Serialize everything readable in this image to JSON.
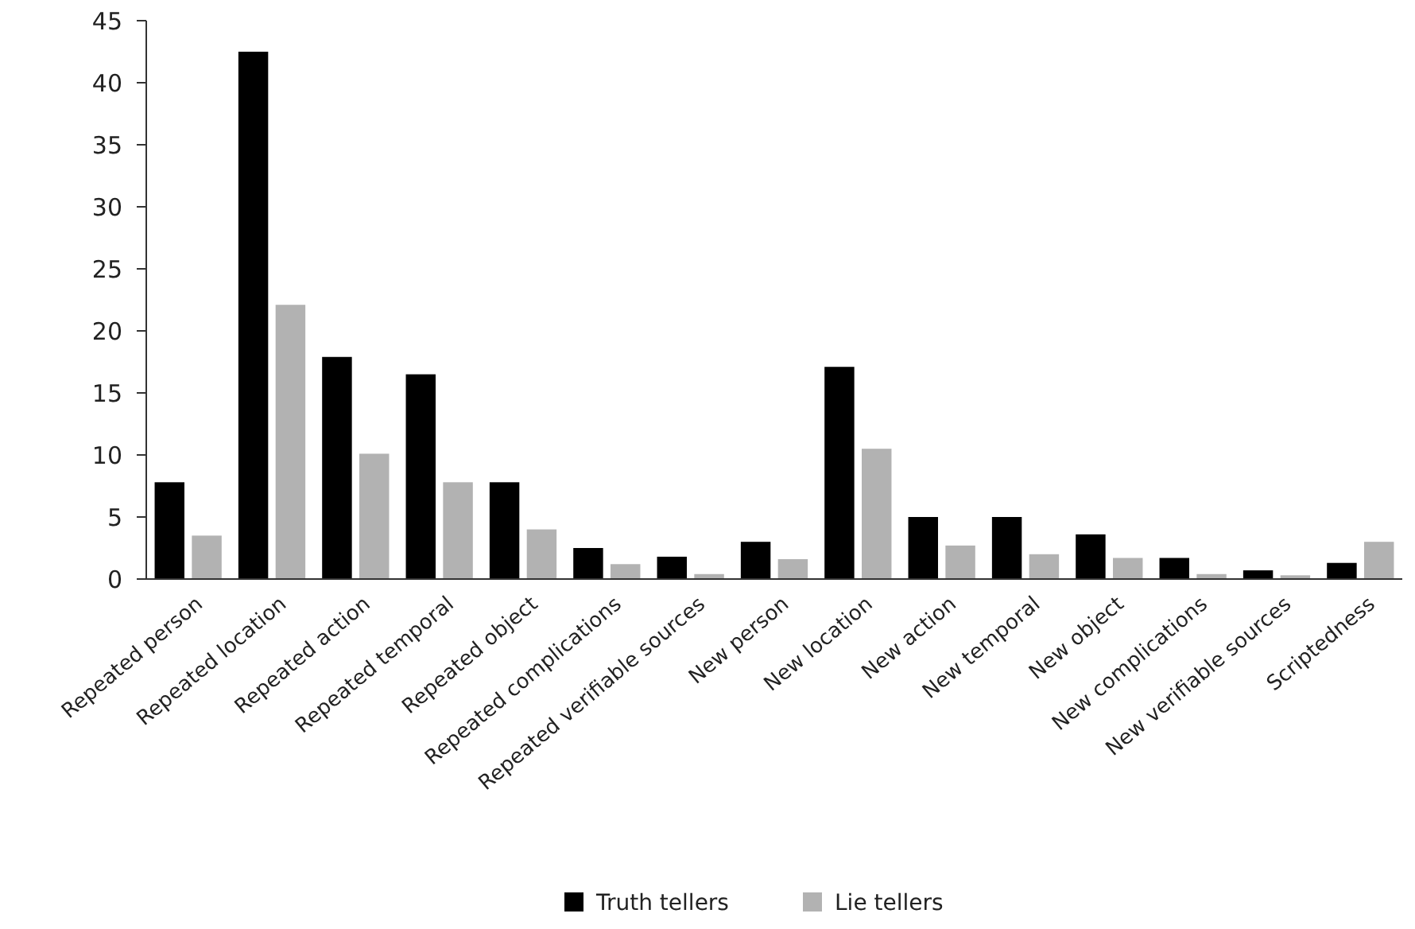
{
  "chart_data": {
    "type": "bar",
    "categories": [
      "Repeated person",
      "Repeated location",
      "Repeated action",
      "Repeated temporal",
      "Repeated object",
      "Repeated complications",
      "Repeated verifiable sources",
      "New person",
      "New location",
      "New action",
      "New temporal",
      "New object",
      "New complications",
      "New verifiable sources",
      "Scriptedness"
    ],
    "series": [
      {
        "name": "Truth tellers",
        "color": "#000000",
        "values": [
          7.8,
          42.5,
          17.9,
          16.5,
          7.8,
          2.5,
          1.8,
          3.0,
          17.1,
          5.0,
          5.0,
          3.6,
          1.7,
          0.7,
          1.3
        ]
      },
      {
        "name": "Lie tellers",
        "color": "#b2b2b2",
        "values": [
          3.5,
          22.1,
          10.1,
          7.8,
          4.0,
          1.2,
          0.4,
          1.6,
          10.5,
          2.7,
          2.0,
          1.7,
          0.4,
          0.3,
          3.0
        ]
      }
    ],
    "ylim": [
      0,
      45
    ],
    "yticks": [
      0,
      5,
      10,
      15,
      20,
      25,
      30,
      35,
      40,
      45
    ],
    "grid": false,
    "legend": "bottom"
  }
}
